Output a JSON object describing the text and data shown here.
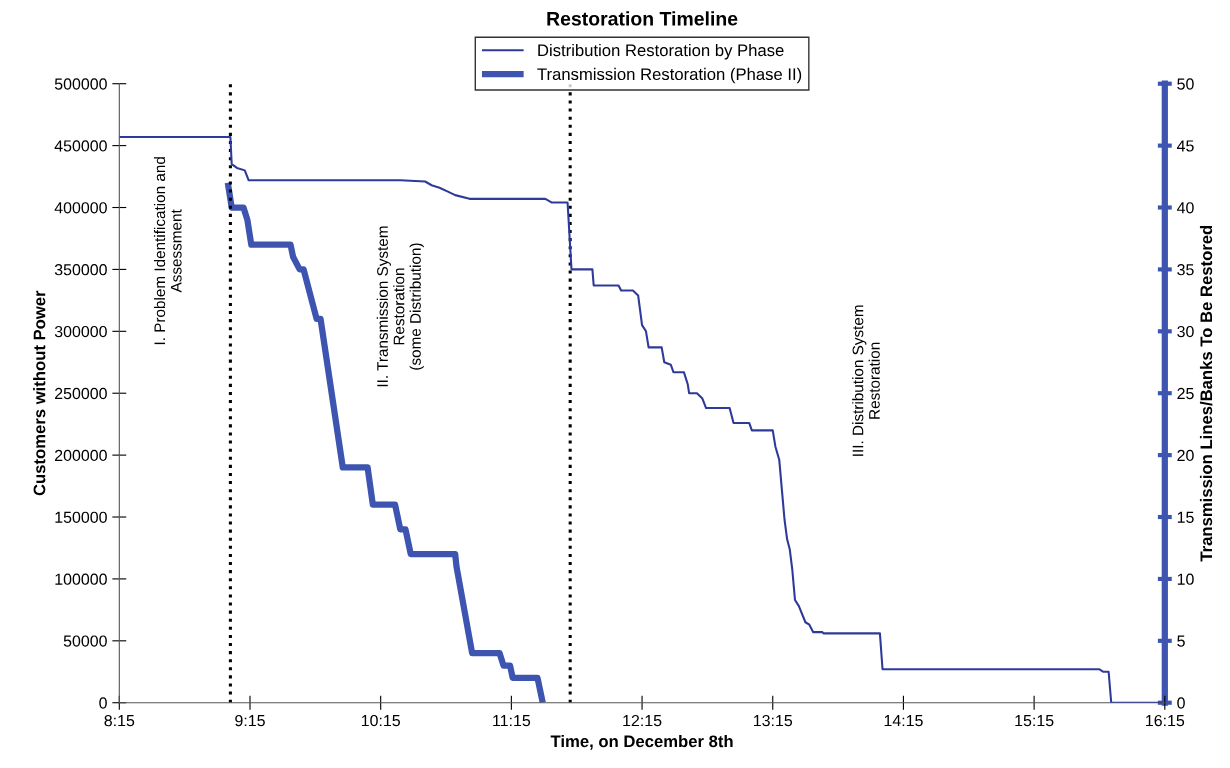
{
  "chart_data": {
    "type": "line",
    "title": "Restoration Timeline",
    "xlabel": "Time, on December 8th",
    "ylabel": "Customers without Power",
    "y2label": "Transmission Lines/Banks To Be Restored",
    "xlim": [
      8.25,
      16.25
    ],
    "xticks": [
      {
        "value": 8.25,
        "label": "8:15"
      },
      {
        "value": 9.25,
        "label": "9:15"
      },
      {
        "value": 10.25,
        "label": "10:15"
      },
      {
        "value": 11.25,
        "label": "11:15"
      },
      {
        "value": 12.25,
        "label": "12:15"
      },
      {
        "value": 13.25,
        "label": "13:15"
      },
      {
        "value": 14.25,
        "label": "14:15"
      },
      {
        "value": 15.25,
        "label": "15:15"
      },
      {
        "value": 16.25,
        "label": "16:15"
      }
    ],
    "ylim": [
      0,
      500000
    ],
    "yticks": [
      0,
      50000,
      100000,
      150000,
      200000,
      250000,
      300000,
      350000,
      400000,
      450000,
      500000
    ],
    "y2lim": [
      0,
      50
    ],
    "y2ticks": [
      0,
      5,
      10,
      15,
      20,
      25,
      30,
      35,
      40,
      45,
      50
    ],
    "grid": false,
    "legend": "top",
    "marker": "none",
    "series": [
      {
        "name": "Distribution Restoration by Phase",
        "color": "#2e3a9a",
        "x": [
          8.25,
          9.1,
          9.11,
          9.15,
          9.21,
          9.24,
          10.4,
          10.59,
          10.64,
          10.7,
          10.76,
          10.82,
          10.93,
          11.51,
          11.56,
          11.68,
          11.71,
          11.87,
          11.88,
          12.07,
          12.09,
          12.18,
          12.22,
          12.25,
          12.28,
          12.3,
          12.4,
          12.42,
          12.47,
          12.49,
          12.57,
          12.6,
          12.61,
          12.67,
          12.71,
          12.74,
          12.92,
          12.95,
          13.07,
          13.09,
          13.25,
          13.27,
          13.3,
          13.34,
          13.36,
          13.38,
          13.4,
          13.42,
          13.45,
          13.5,
          13.53,
          13.56,
          13.63,
          13.64,
          14.07,
          14.09,
          15.75,
          15.78,
          15.82,
          15.84,
          16.23
        ],
        "values": [
          457000,
          457000,
          435000,
          432000,
          430000,
          422000,
          422000,
          421000,
          418000,
          416000,
          413000,
          410000,
          407000,
          407000,
          404000,
          404000,
          350000,
          350000,
          337000,
          337000,
          333000,
          333000,
          329000,
          305000,
          300000,
          287000,
          287000,
          275000,
          273000,
          267000,
          267000,
          257000,
          250000,
          250000,
          246000,
          238000,
          238000,
          226000,
          226000,
          220000,
          220000,
          207000,
          196000,
          148000,
          132000,
          124000,
          107000,
          83000,
          78000,
          65000,
          63000,
          57000,
          57000,
          56000,
          56000,
          27000,
          27000,
          25000,
          25000,
          0,
          0
        ]
      },
      {
        "name": "Transmission Restoration (Phase II)",
        "color": "#3d55b0",
        "axis": "y2",
        "x": [
          9.08,
          9.11,
          9.2,
          9.23,
          9.26,
          9.56,
          9.58,
          9.63,
          9.66,
          9.76,
          9.79,
          9.96,
          10.15,
          10.19,
          10.36,
          10.4,
          10.44,
          10.48,
          10.82,
          10.83,
          10.95,
          11.16,
          11.19,
          11.24,
          11.26,
          11.45,
          11.49
        ],
        "values": [
          42,
          40,
          40,
          39,
          37,
          37,
          36,
          35,
          35,
          31,
          31,
          19,
          19,
          16,
          16,
          14,
          14,
          12,
          12,
          11,
          4,
          4,
          3,
          3,
          2,
          2,
          0
        ]
      }
    ],
    "ref_lines": [
      {
        "axis": "x",
        "value": 9.1,
        "color": "#000000",
        "line_style": "dotted"
      },
      {
        "axis": "x",
        "value": 11.7,
        "color": "#000000",
        "line_style": "dotted"
      }
    ],
    "annotations": [
      "I. Problem Identification and\nAssessment",
      "II. Transmission System\nRestoration\n(some Distribution)",
      "III. Distribution System\nRestoration"
    ]
  }
}
